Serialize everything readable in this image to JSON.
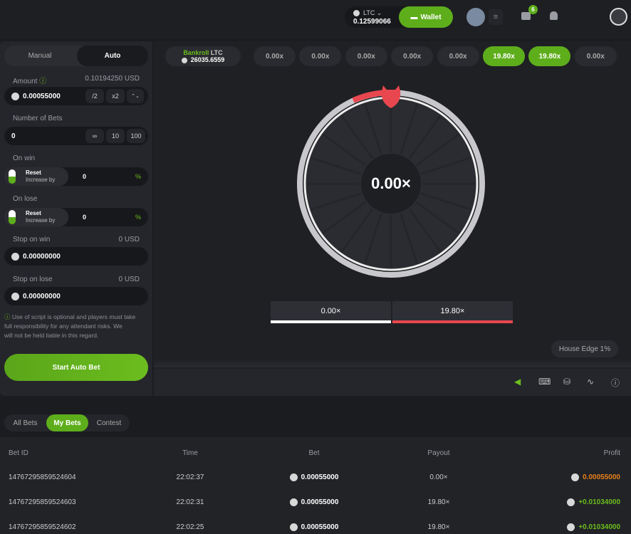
{
  "header": {
    "currency": "LTC",
    "balance": "0.12599066",
    "wallet": "Wallet",
    "badge": "6"
  },
  "controls": {
    "tabs": [
      "Manual",
      "Auto"
    ],
    "amount": {
      "label": "Amount",
      "usd": "0.10194250 USD",
      "value": "0.00055000",
      "half": "/2",
      "double": "x2"
    },
    "bets": {
      "label": "Number of Bets",
      "value": "0",
      "options": [
        "∞",
        "10",
        "100"
      ]
    },
    "on_win": {
      "label": "On win",
      "reset": "Reset",
      "increase": "Increase by",
      "value": "0",
      "unit": "%"
    },
    "on_lose": {
      "label": "On lose",
      "reset": "Reset",
      "increase": "Increase by",
      "value": "0",
      "unit": "%"
    },
    "stop_win": {
      "label": "Stop on win",
      "usd": "0 USD",
      "value": "0.00000000"
    },
    "stop_lose": {
      "label": "Stop on lose",
      "usd": "0 USD",
      "value": "0.00000000"
    },
    "note": [
      "Use of script is optional and players must take",
      "full responsibility for any attendant risks. We",
      "will not be held liable in this regard."
    ],
    "start": "Start Auto Bet"
  },
  "game": {
    "bankroll": "Bankroll",
    "bankroll_currency": "LTC",
    "bankroll_value": "26035.6559",
    "history": [
      {
        "text": "0.00x",
        "win": false
      },
      {
        "text": "0.00x",
        "win": false
      },
      {
        "text": "0.00x",
        "win": false
      },
      {
        "text": "0.00x",
        "win": false
      },
      {
        "text": "0.00x",
        "win": false
      },
      {
        "text": "19.80x",
        "win": true
      },
      {
        "text": "19.80x",
        "win": true
      },
      {
        "text": "0.00x",
        "win": false
      }
    ],
    "center": "0.00×",
    "outcomes": [
      {
        "text": "0.00×",
        "color": "#ffffff"
      },
      {
        "text": "19.80×",
        "color": "#e8474f"
      }
    ],
    "house_edge": "House Edge 1%"
  },
  "bets_table": {
    "tabs": [
      "All Bets",
      "My Bets",
      "Contest"
    ],
    "active_tab": 1,
    "columns": [
      "Bet ID",
      "Time",
      "Bet",
      "Payout",
      "Profit"
    ],
    "rows": [
      [
        "14767295859524604",
        "22:02:37",
        "0.00055000",
        "0.00×",
        "0.00055000"
      ],
      [
        "14767295859524603",
        "22:02:31",
        "0.00055000",
        "19.80×",
        "+0.01034000"
      ],
      [
        "14767295859524602",
        "22:02:25",
        "0.00055000",
        "19.80×",
        "+0.01034000"
      ]
    ],
    "profit_colors": [
      "#e8811a",
      "#6cbd1e",
      "#6cbd1e"
    ]
  }
}
